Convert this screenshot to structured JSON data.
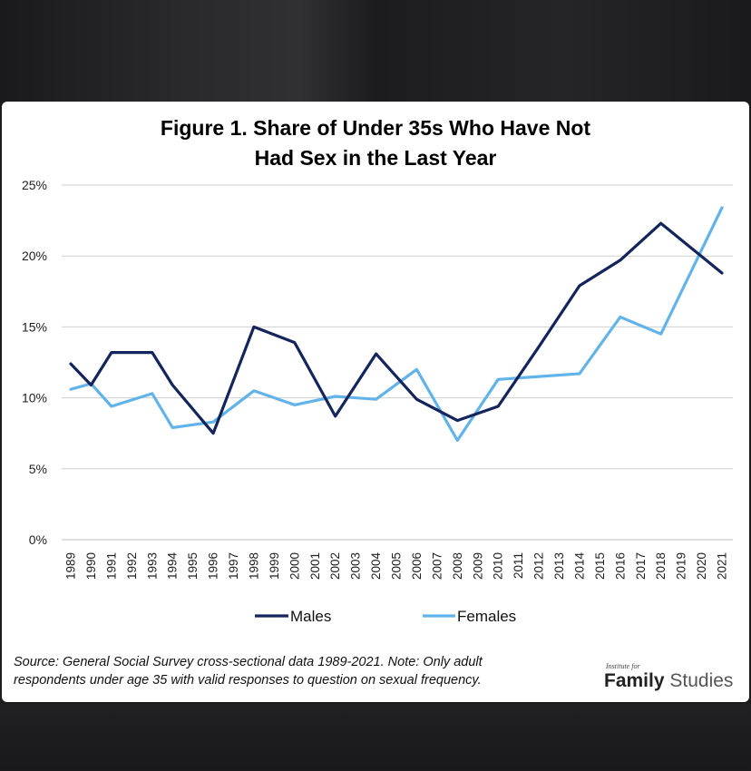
{
  "chart_data": {
    "type": "line",
    "title_line1": "Figure 1. Share of Under 35s Who Have Not",
    "title_line2": "Had Sex in the Last Year",
    "x": [
      "1989",
      "1990",
      "1991",
      "1992",
      "1993",
      "1994",
      "1995",
      "1996",
      "1997",
      "1998",
      "1999",
      "2000",
      "2001",
      "2002",
      "2003",
      "2004",
      "2005",
      "2006",
      "2007",
      "2008",
      "2009",
      "2010",
      "2011",
      "2012",
      "2013",
      "2014",
      "2015",
      "2016",
      "2017",
      "2018",
      "2019",
      "2020",
      "2021"
    ],
    "y_ticks": [
      "0%",
      "5%",
      "10%",
      "15%",
      "20%",
      "25%"
    ],
    "ylim": [
      0,
      25
    ],
    "grid": true,
    "legend_position": "bottom",
    "series": [
      {
        "name": "Males",
        "color": "#14245c",
        "points": [
          {
            "year": 1989,
            "value": 12.4
          },
          {
            "year": 1990,
            "value": 10.9
          },
          {
            "year": 1991,
            "value": 13.2
          },
          {
            "year": 1993,
            "value": 13.2
          },
          {
            "year": 1994,
            "value": 10.9
          },
          {
            "year": 1996,
            "value": 7.5
          },
          {
            "year": 1998,
            "value": 15.0
          },
          {
            "year": 2000,
            "value": 13.9
          },
          {
            "year": 2002,
            "value": 8.7
          },
          {
            "year": 2004,
            "value": 13.1
          },
          {
            "year": 2006,
            "value": 9.9
          },
          {
            "year": 2008,
            "value": 8.4
          },
          {
            "year": 2010,
            "value": 9.4
          },
          {
            "year": 2012,
            "value": 13.6
          },
          {
            "year": 2014,
            "value": 17.9
          },
          {
            "year": 2016,
            "value": 19.7
          },
          {
            "year": 2018,
            "value": 22.3
          },
          {
            "year": 2021,
            "value": 18.8
          }
        ]
      },
      {
        "name": "Females",
        "color": "#62b3ea",
        "points": [
          {
            "year": 1989,
            "value": 10.6
          },
          {
            "year": 1990,
            "value": 11.0
          },
          {
            "year": 1991,
            "value": 9.4
          },
          {
            "year": 1993,
            "value": 10.3
          },
          {
            "year": 1994,
            "value": 7.9
          },
          {
            "year": 1996,
            "value": 8.3
          },
          {
            "year": 1998,
            "value": 10.5
          },
          {
            "year": 2000,
            "value": 9.5
          },
          {
            "year": 2002,
            "value": 10.1
          },
          {
            "year": 2004,
            "value": 9.9
          },
          {
            "year": 2006,
            "value": 12.0
          },
          {
            "year": 2008,
            "value": 7.0
          },
          {
            "year": 2010,
            "value": 11.3
          },
          {
            "year": 2012,
            "value": 11.5
          },
          {
            "year": 2014,
            "value": 11.7
          },
          {
            "year": 2016,
            "value": 15.7
          },
          {
            "year": 2018,
            "value": 14.5
          },
          {
            "year": 2021,
            "value": 23.4
          }
        ]
      }
    ]
  },
  "source_line1": "Source: General Social Survey cross-sectional data 1989-2021. Note: Only adult",
  "source_line2": "respondents under age 35 with valid responses to question on sexual frequency.",
  "logo": {
    "small": "Institute for",
    "main_bold": "Family",
    "main_light": "Studies"
  }
}
